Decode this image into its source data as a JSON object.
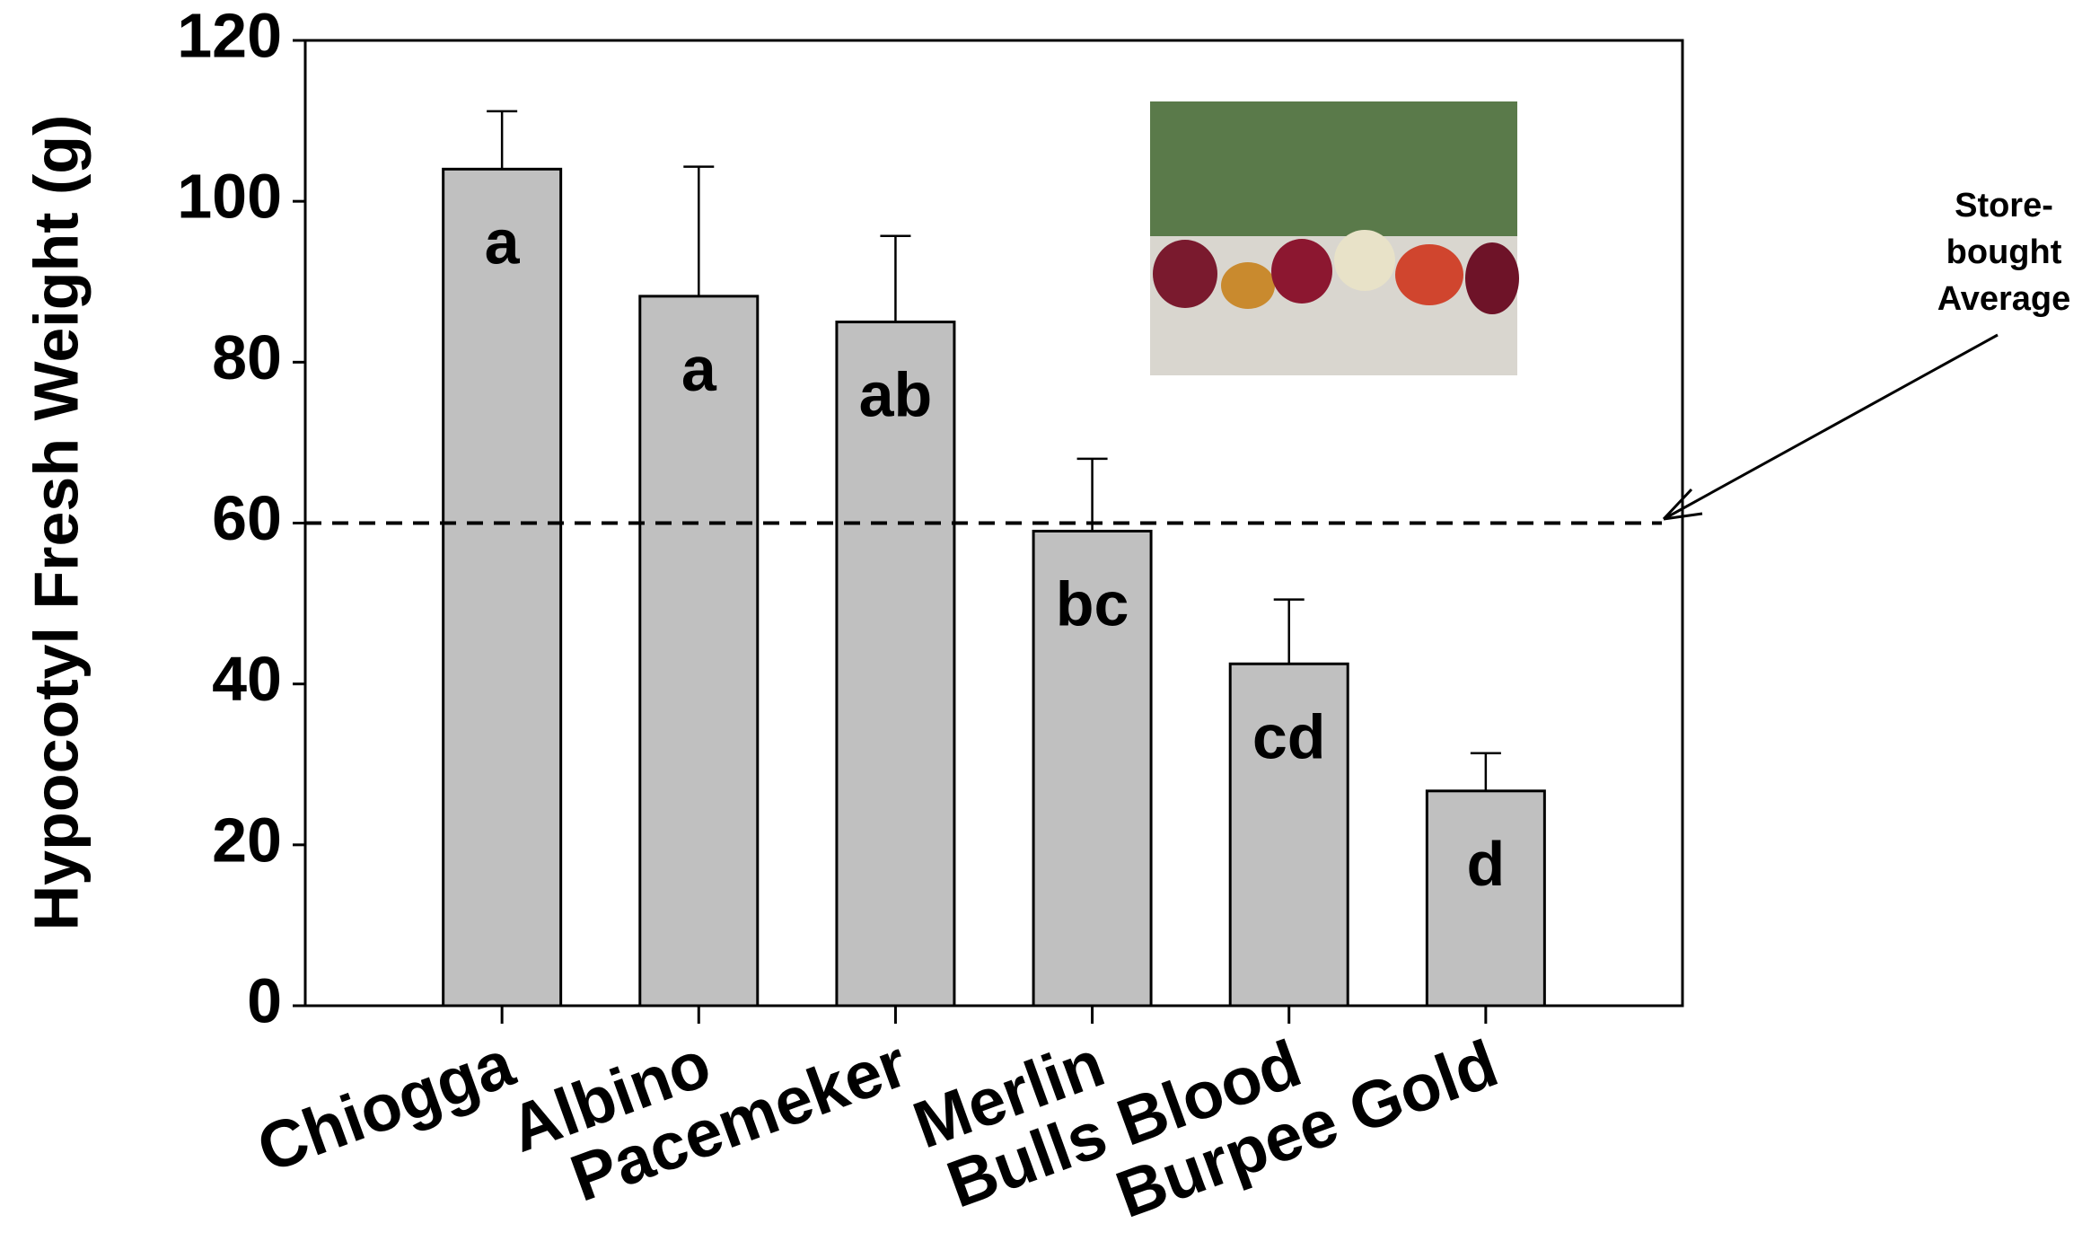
{
  "chart_data": {
    "type": "bar",
    "y_label": "Hypocotyl Fresh Weight (g)",
    "categories": [
      "Chiogga",
      "Albino",
      "Pacemeker",
      "Merlin",
      "Bulls Blood",
      "Burpee Gold"
    ],
    "values": [
      104,
      88.2,
      85,
      59,
      42.5,
      26.7
    ],
    "errors": [
      7.2,
      16.1,
      10.7,
      9,
      8,
      4.7
    ],
    "significance_letters": [
      "a",
      "a",
      "ab",
      "bc",
      "cd",
      "d"
    ],
    "color": "#c0c0c0",
    "ylim": [
      0,
      120
    ],
    "yticks": [
      0,
      20,
      40,
      60,
      80,
      100,
      120
    ],
    "reference_line": {
      "value": 60,
      "label_lines": [
        "Store-",
        "bought",
        "Average"
      ]
    }
  }
}
